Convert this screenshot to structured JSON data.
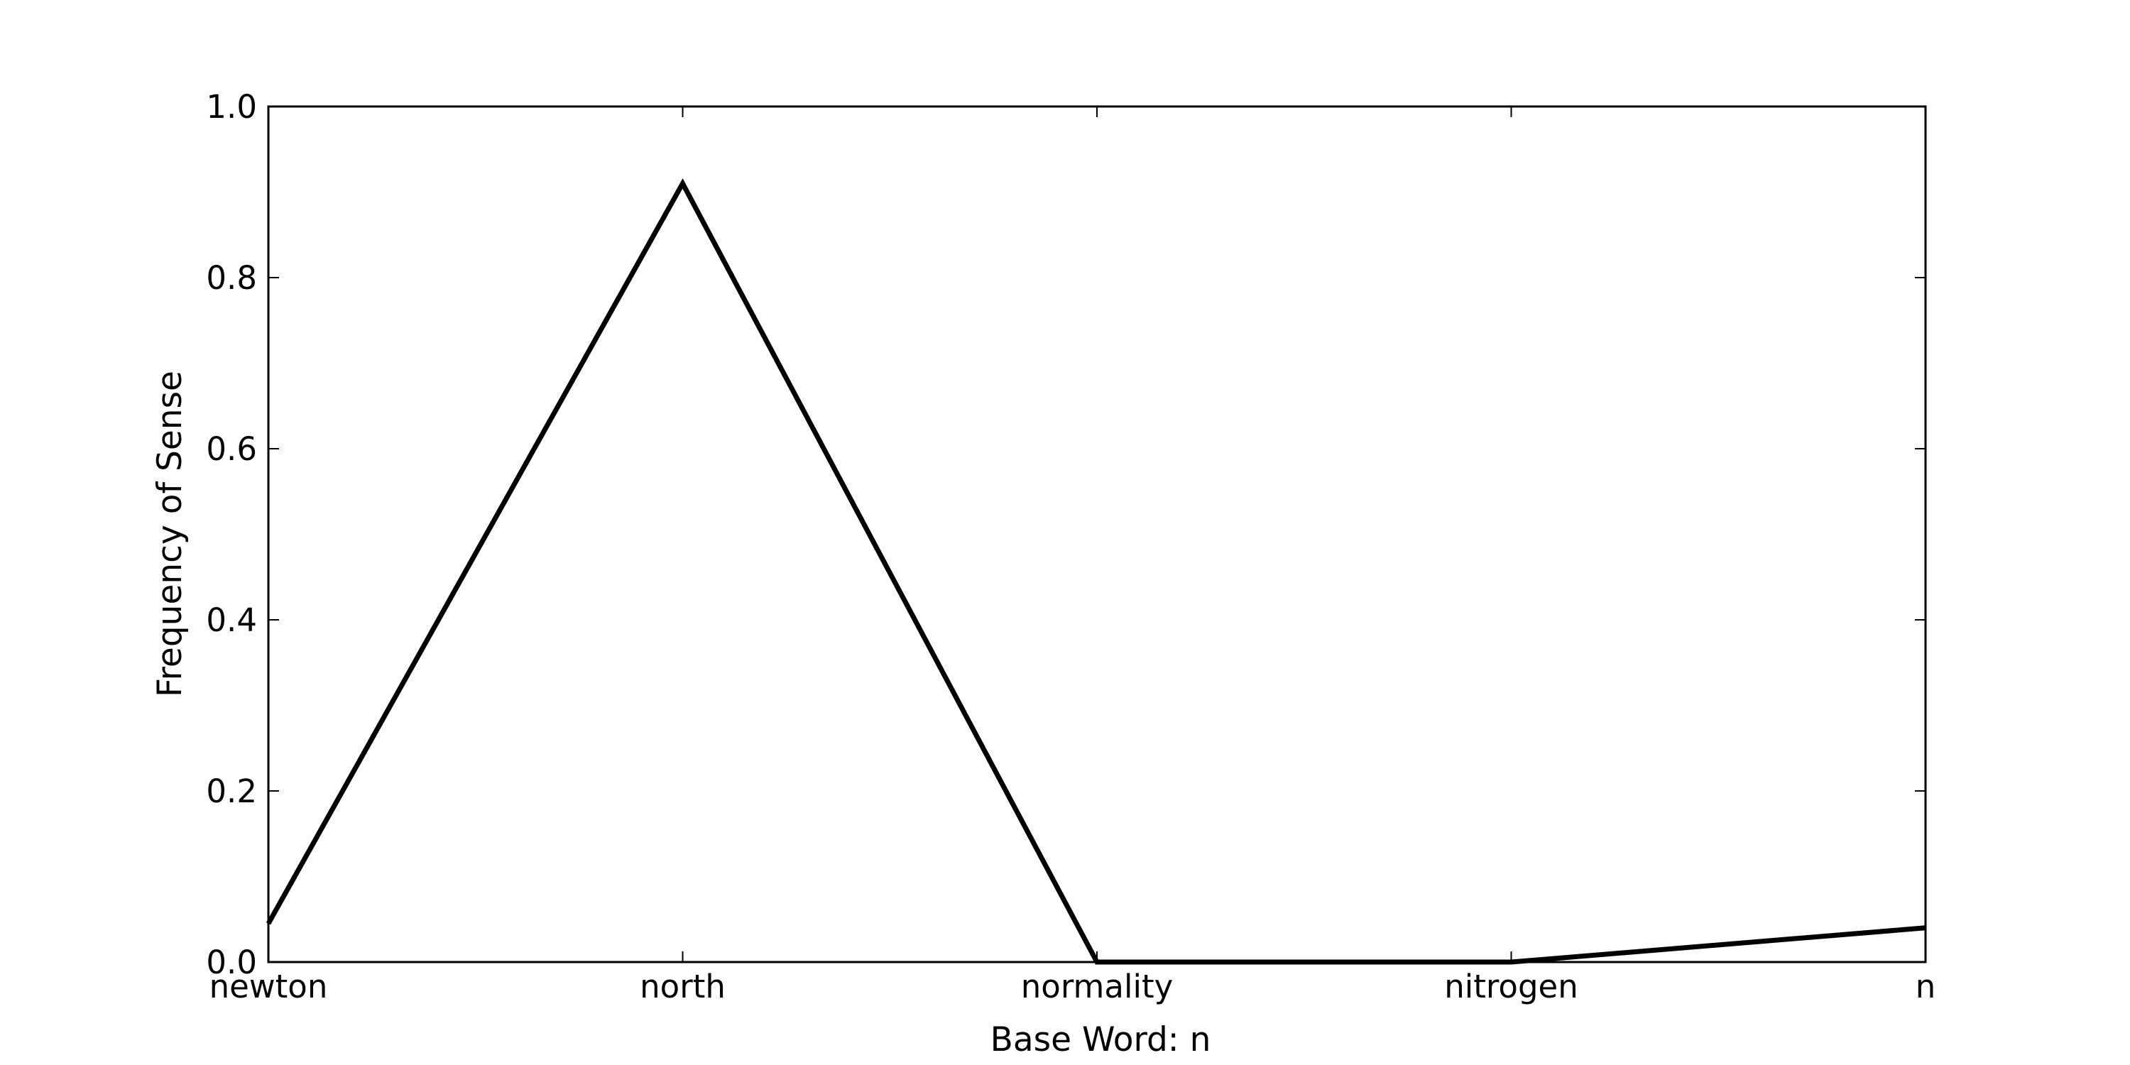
{
  "chart_data": {
    "type": "line",
    "title": "",
    "xlabel": "Base Word: n",
    "ylabel": "Frequency of Sense",
    "categories": [
      "newton",
      "north",
      "normality",
      "nitrogen",
      "n"
    ],
    "series": [
      {
        "values": [
          0.045,
          0.91,
          0.0,
          0.0,
          0.04
        ]
      }
    ],
    "ylim": [
      0.0,
      1.0
    ],
    "yticks": [
      "0.0",
      "0.2",
      "0.4",
      "0.6",
      "0.8",
      "1.0"
    ],
    "grid": false,
    "legend": "none",
    "line_color": "#000000"
  }
}
